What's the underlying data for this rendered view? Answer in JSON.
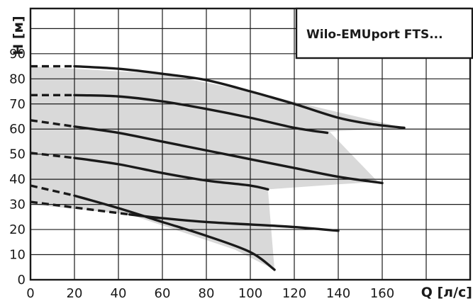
{
  "chart_data": {
    "type": "line",
    "title": "Wilo-EMUport FTS...",
    "xlabel": "Q [л/с]",
    "ylabel": "H [м]",
    "xlim": [
      0,
      200
    ],
    "ylim": [
      0,
      108
    ],
    "x_ticks": [
      "0",
      "20",
      "40",
      "60",
      "80",
      "100",
      "120",
      "140",
      "160"
    ],
    "y_ticks": [
      "0",
      "10",
      "20",
      "30",
      "40",
      "50",
      "60",
      "70",
      "80",
      "90"
    ],
    "grid": true,
    "legend": "none",
    "range_fill_color": "#d9d9d9",
    "line_color": "#1a1a1a",
    "operating_range": [
      [
        0,
        85
      ],
      [
        60,
        82
      ],
      [
        100,
        75
      ],
      [
        170,
        60.5
      ],
      [
        136,
        59
      ],
      [
        158,
        39
      ],
      [
        140,
        38
      ],
      [
        108,
        36
      ],
      [
        111,
        4
      ],
      [
        93,
        12
      ],
      [
        45,
        26
      ],
      [
        0,
        30
      ]
    ],
    "series": [
      {
        "dashed": [
          [
            0,
            85
          ],
          [
            20,
            85
          ]
        ],
        "solid": [
          [
            20,
            85
          ],
          [
            40,
            84
          ],
          [
            60,
            82
          ],
          [
            80,
            79.5
          ],
          [
            100,
            75
          ],
          [
            120,
            70
          ],
          [
            140,
            64.5
          ],
          [
            155,
            62
          ],
          [
            170,
            60.5
          ]
        ]
      },
      {
        "dashed": [
          [
            0,
            73.5
          ],
          [
            20,
            73.5
          ]
        ],
        "solid": [
          [
            20,
            73.5
          ],
          [
            40,
            73
          ],
          [
            60,
            71
          ],
          [
            80,
            68
          ],
          [
            100,
            64.5
          ],
          [
            120,
            60.5
          ],
          [
            135,
            58.5
          ]
        ]
      },
      {
        "dashed": [
          [
            0,
            63.5
          ],
          [
            20,
            61
          ]
        ],
        "solid": [
          [
            20,
            61
          ],
          [
            40,
            58.5
          ],
          [
            60,
            55
          ],
          [
            80,
            51.5
          ],
          [
            100,
            48
          ],
          [
            120,
            44.5
          ],
          [
            140,
            41
          ],
          [
            160,
            38.5
          ]
        ]
      },
      {
        "dashed": [
          [
            0,
            50.5
          ],
          [
            20,
            48.5
          ]
        ],
        "solid": [
          [
            20,
            48.5
          ],
          [
            40,
            46
          ],
          [
            60,
            42.5
          ],
          [
            80,
            39.5
          ],
          [
            100,
            37.5
          ],
          [
            108,
            36
          ]
        ]
      },
      {
        "dashed": [
          [
            0,
            37.5
          ],
          [
            20,
            33.5
          ]
        ],
        "solid": [
          [
            20,
            33.5
          ],
          [
            40,
            28.5
          ],
          [
            60,
            23
          ],
          [
            80,
            17.5
          ],
          [
            100,
            11
          ],
          [
            111,
            4
          ]
        ]
      },
      {
        "dashed": [
          [
            0,
            31
          ],
          [
            45,
            26
          ]
        ],
        "solid": [
          [
            45,
            26
          ],
          [
            60,
            24.5
          ],
          [
            80,
            23
          ],
          [
            100,
            22
          ],
          [
            120,
            21
          ],
          [
            140,
            19.5
          ]
        ]
      }
    ]
  }
}
